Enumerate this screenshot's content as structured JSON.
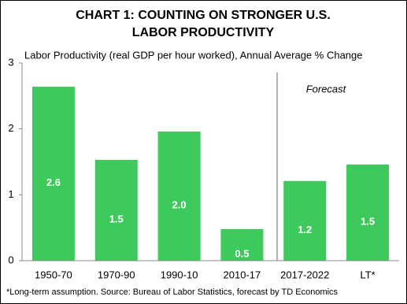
{
  "chart_data": {
    "type": "bar",
    "title": [
      "CHART 1: COUNTING ON STRONGER U.S.",
      "LABOR PRODUCTIVITY"
    ],
    "subtitle": "Labor Productivity (real GDP per hour worked), Annual Average % Change",
    "annotation": "Forecast",
    "footnote": "*Long-term assumption.  Source: Bureau of Labor Statistics, forecast by TD Economics",
    "categories": [
      "1950-70",
      "1970-90",
      "1990-10",
      "2010-17",
      "2017-2022",
      "LT*"
    ],
    "values": [
      2.64,
      1.53,
      1.96,
      0.48,
      1.21,
      1.46
    ],
    "value_labels": [
      "2.6",
      "1.5",
      "2.0",
      "0.5",
      "1.2",
      "1.5"
    ],
    "color": "#3ec95c",
    "ylim": [
      0,
      3
    ],
    "yticks": [
      0,
      1,
      2,
      3
    ],
    "grid": false
  }
}
